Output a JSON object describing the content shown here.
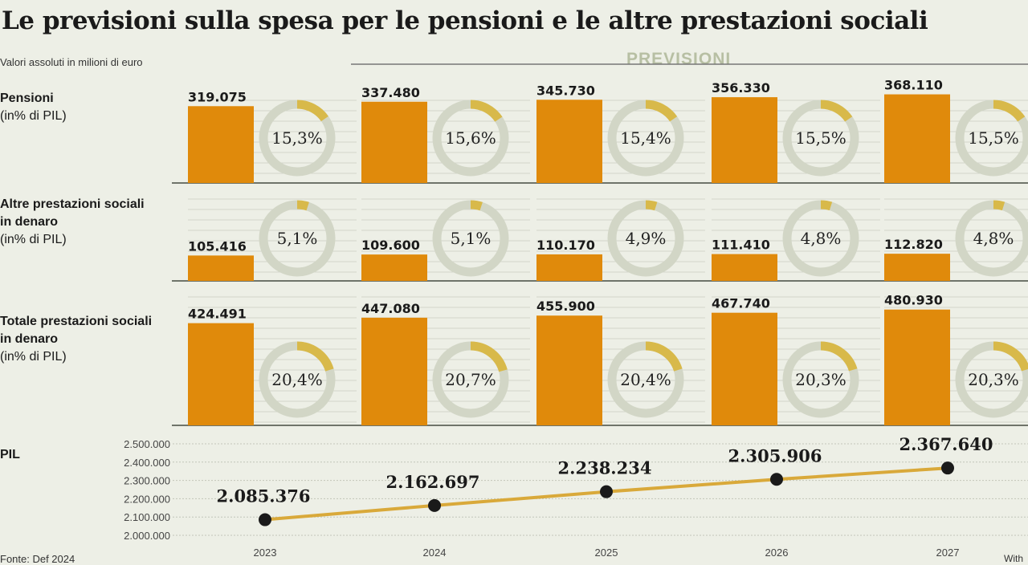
{
  "title": "Le previsioni sulla spesa per le pensioni e le altre prestazioni sociali",
  "subtitle": "Valori assoluti in milioni di euro",
  "forecast_label": "PREVISIONI",
  "footer": {
    "source": "Fonte: Def 2024",
    "credit": "With"
  },
  "colors": {
    "bar": "#e08a0b",
    "donut_fill": "#d8b94a",
    "donut_track": "#d2d6c6",
    "line": "#d9a93a",
    "background": "#edefe6"
  },
  "chart_data": {
    "type": "bar",
    "title": "Le previsioni sulla spesa per le pensioni e le altre prestazioni sociali",
    "categories": [
      "2023",
      "2024",
      "2025",
      "2026",
      "2027"
    ],
    "forecast_years": [
      "2024",
      "2025",
      "2026",
      "2027"
    ],
    "rows": [
      {
        "label": "Pensioni",
        "sub": "(in% di PIL)",
        "values": [
          319075,
          337480,
          345730,
          356330,
          368110
        ],
        "value_labels": [
          "319.075",
          "337.480",
          "345.730",
          "356.330",
          "368.110"
        ],
        "pct": [
          15.3,
          15.6,
          15.4,
          15.5,
          15.5
        ],
        "pct_labels": [
          "15,3%",
          "15,6%",
          "15,4%",
          "15,5%",
          "15,5%"
        ]
      },
      {
        "label": "Altre prestazioni sociali in denaro",
        "sub": "(in% di PIL)",
        "values": [
          105416,
          109600,
          110170,
          111410,
          112820
        ],
        "value_labels": [
          "105.416",
          "109.600",
          "110.170",
          "111.410",
          "112.820"
        ],
        "pct": [
          5.1,
          5.1,
          4.9,
          4.8,
          4.8
        ],
        "pct_labels": [
          "5,1%",
          "5,1%",
          "4,9%",
          "4,8%",
          "4,8%"
        ]
      },
      {
        "label": "Totale prestazioni sociali in denaro",
        "sub": "(in% di PIL)",
        "values": [
          424491,
          447080,
          455900,
          467740,
          480930
        ],
        "value_labels": [
          "424.491",
          "447.080",
          "455.900",
          "467.740",
          "480.930"
        ],
        "pct": [
          20.4,
          20.7,
          20.4,
          20.3,
          20.3
        ],
        "pct_labels": [
          "20,4%",
          "20,7%",
          "20,4%",
          "20,3%",
          "20,3%"
        ]
      }
    ],
    "pil": {
      "label": "PIL",
      "type": "line",
      "values": [
        2085376,
        2162697,
        2238234,
        2305906,
        2367640
      ],
      "value_labels": [
        "2.085.376",
        "2.162.697",
        "2.238.234",
        "2.305.906",
        "2.367.640"
      ],
      "ylim": [
        2000000,
        2500000
      ],
      "yticks": [
        "2.000.000",
        "2.100.000",
        "2.200.000",
        "2.300.000",
        "2.400.000",
        "2.500.000"
      ]
    }
  }
}
